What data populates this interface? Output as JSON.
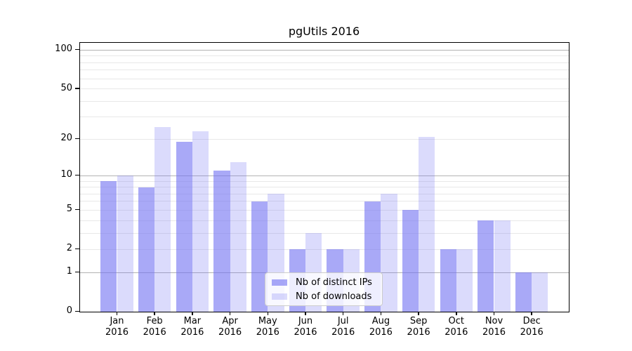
{
  "title": "pgUtils 2016",
  "chart_data": {
    "type": "bar",
    "title": "pgUtils 2016",
    "categories": [
      "Jan 2016",
      "Feb 2016",
      "Mar 2016",
      "Apr 2016",
      "May 2016",
      "Jun 2016",
      "Jul 2016",
      "Aug 2016",
      "Sep 2016",
      "Oct 2016",
      "Nov 2016",
      "Dec 2016"
    ],
    "series": [
      {
        "name": "Nb of distinct IPs",
        "base_color": "#7070f2",
        "alpha": 0.6,
        "values": [
          9,
          8,
          19,
          11,
          6,
          2,
          2,
          6,
          5,
          2,
          4,
          1
        ]
      },
      {
        "name": "Nb of downloads",
        "base_color": "#7070f2",
        "alpha": 0.25,
        "values": [
          10,
          25,
          23,
          13,
          7,
          3,
          2,
          7,
          21,
          2,
          4,
          1
        ]
      }
    ],
    "xlabel": "",
    "ylabel": "",
    "yscale": "log1p",
    "ylim": [
      0,
      114
    ],
    "yticks": [
      100,
      50,
      20,
      10,
      5,
      2,
      1,
      0
    ],
    "grid": {
      "on": true,
      "major_values": [
        1,
        10,
        100
      ],
      "minor_values": [
        2,
        3,
        4,
        5,
        6,
        7,
        8,
        9,
        20,
        30,
        40,
        50,
        60,
        70,
        80,
        90
      ],
      "major_color": "#b3b3b3",
      "minor_color": "#e8e8e8"
    },
    "legend": {
      "position": "lower center"
    }
  },
  "colors": {
    "spine": "#000000",
    "background": "#ffffff",
    "legend_border": "#cccccc"
  }
}
